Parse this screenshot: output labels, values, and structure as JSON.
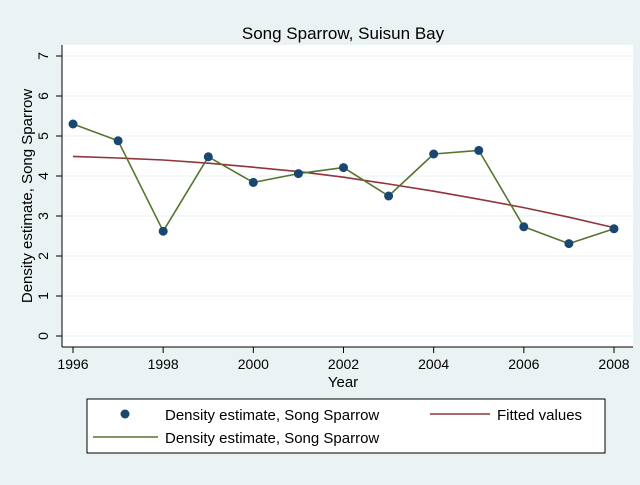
{
  "chart_data": {
    "type": "line",
    "title": "Song Sparrow, Suisun Bay",
    "xlabel": "Year",
    "ylabel": "Density estimate, Song Sparrow",
    "xlim": [
      1996,
      2008
    ],
    "ylim": [
      0,
      7
    ],
    "x_ticks": [
      1996,
      1998,
      2000,
      2002,
      2004,
      2006,
      2008
    ],
    "y_ticks": [
      0,
      1,
      2,
      3,
      4,
      5,
      6,
      7
    ],
    "grid": true,
    "legend_position": "bottom",
    "series": [
      {
        "name": "Density estimate, Song Sparrow",
        "style": "markers",
        "color": "#1a476f",
        "x": [
          1996,
          1997,
          1998,
          1999,
          2000,
          2001,
          2002,
          2003,
          2004,
          2005,
          2006,
          2007,
          2008
        ],
        "y": [
          5.3,
          4.88,
          2.62,
          4.48,
          3.84,
          4.06,
          4.21,
          3.5,
          4.55,
          4.64,
          2.73,
          2.31,
          2.68
        ]
      },
      {
        "name": "Fitted values",
        "style": "line",
        "color": "#90353b",
        "x": [
          1996,
          1997,
          1998,
          1999,
          2000,
          2001,
          2002,
          2003,
          2004,
          2005,
          2006,
          2007,
          2008
        ],
        "y": [
          4.49,
          4.45,
          4.4,
          4.32,
          4.22,
          4.11,
          3.97,
          3.8,
          3.62,
          3.42,
          3.21,
          2.97,
          2.71
        ]
      },
      {
        "name": "Density estimate, Song Sparrow",
        "style": "line",
        "color": "#55752f",
        "x": [
          1996,
          1997,
          1998,
          1999,
          2000,
          2001,
          2002,
          2003,
          2004,
          2005,
          2006,
          2007,
          2008
        ],
        "y": [
          5.3,
          4.88,
          2.62,
          4.48,
          3.84,
          4.06,
          4.21,
          3.5,
          4.55,
          4.64,
          2.73,
          2.31,
          2.68
        ]
      }
    ],
    "colors": {
      "background": "#eaf2f3",
      "plot_background": "#ffffff",
      "grid": "#eaf2f3"
    }
  }
}
